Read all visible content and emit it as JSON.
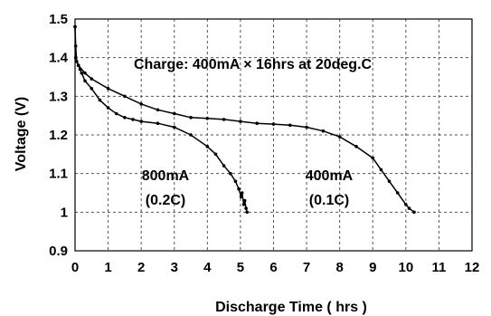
{
  "chart_data": {
    "type": "scatter",
    "title": "",
    "xlabel": "Discharge Time ( hrs )",
    "ylabel": "Voltage (V)",
    "xlim": [
      0,
      12
    ],
    "ylim": [
      0.9,
      1.5
    ],
    "x_ticks": [
      "0",
      "1",
      "2",
      "3",
      "4",
      "5",
      "6",
      "7",
      "8",
      "9",
      "10",
      "11",
      "12"
    ],
    "y_ticks": [
      "1.5",
      "1.4",
      "1.3",
      "1.2",
      "1.1",
      "1",
      "0.9"
    ],
    "grid": true,
    "annotations": {
      "charge": "Charge: 400mA × 16hrs at 20deg.C",
      "s800_line1": "800mA",
      "s800_line2": "(0.2C)",
      "s400_line1": "400mA",
      "s400_line2": "(0.1C)"
    },
    "series": [
      {
        "x": [
          0,
          0.02,
          0.05,
          0.1,
          0.15,
          0.2,
          0.3,
          0.5,
          0.75,
          1,
          1.25,
          1.5,
          1.75,
          2,
          2.5,
          3,
          3.5,
          4,
          4.25,
          4.5,
          4.7,
          4.85,
          4.95,
          5.02,
          5.05,
          5.1,
          5.13,
          5.17,
          5.2
        ],
        "y": [
          1.48,
          1.43,
          1.39,
          1.38,
          1.37,
          1.36,
          1.34,
          1.32,
          1.29,
          1.27,
          1.255,
          1.245,
          1.24,
          1.235,
          1.23,
          1.22,
          1.2,
          1.17,
          1.15,
          1.12,
          1.1,
          1.08,
          1.06,
          1.04,
          1.05,
          1.02,
          1.03,
          1.01,
          1.0
        ]
      },
      {
        "x": [
          0,
          0.02,
          0.1,
          0.3,
          0.5,
          1,
          1.5,
          2,
          2.5,
          3,
          3.5,
          4,
          4.5,
          5,
          5.5,
          6,
          6.5,
          7,
          7.5,
          8,
          8.5,
          9,
          9.25,
          9.5,
          9.75,
          10,
          10.1,
          10.25
        ],
        "y": [
          1.48,
          1.4,
          1.38,
          1.36,
          1.345,
          1.32,
          1.3,
          1.28,
          1.265,
          1.255,
          1.245,
          1.243,
          1.24,
          1.235,
          1.23,
          1.228,
          1.225,
          1.22,
          1.21,
          1.195,
          1.17,
          1.14,
          1.11,
          1.08,
          1.05,
          1.02,
          1.01,
          1.0
        ]
      }
    ]
  }
}
